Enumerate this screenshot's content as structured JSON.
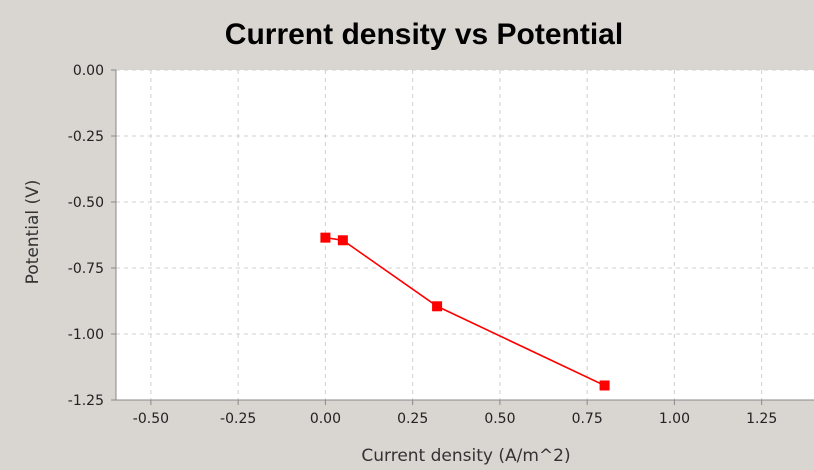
{
  "chart_data": {
    "type": "line",
    "title": "Current density vs Potential",
    "xlabel": "Current density (A/m^2)",
    "ylabel": "Potential (V)",
    "xlim": [
      -0.6,
      1.4
    ],
    "ylim": [
      -1.25,
      0.0
    ],
    "x_ticks": [
      "-0.50",
      "-0.25",
      "0.00",
      "0.25",
      "0.50",
      "0.75",
      "1.00",
      "1.25"
    ],
    "x_tick_values": [
      -0.5,
      -0.25,
      0.0,
      0.25,
      0.5,
      0.75,
      1.0,
      1.25
    ],
    "y_ticks": [
      "0.00",
      "-0.25",
      "-0.50",
      "-0.75",
      "-1.00",
      "-1.25"
    ],
    "y_tick_values": [
      0.0,
      -0.25,
      -0.5,
      -0.75,
      -1.0,
      -1.25
    ],
    "grid": true,
    "legend": "none",
    "series": [
      {
        "color": "#ff0000",
        "marker": "square",
        "x": [
          0.0,
          0.05,
          0.32,
          0.8
        ],
        "y": [
          -0.635,
          -0.645,
          -0.895,
          -1.195
        ]
      }
    ],
    "colors": {
      "background": "#d9d6d2",
      "plot_background": "#ffffff"
    }
  }
}
